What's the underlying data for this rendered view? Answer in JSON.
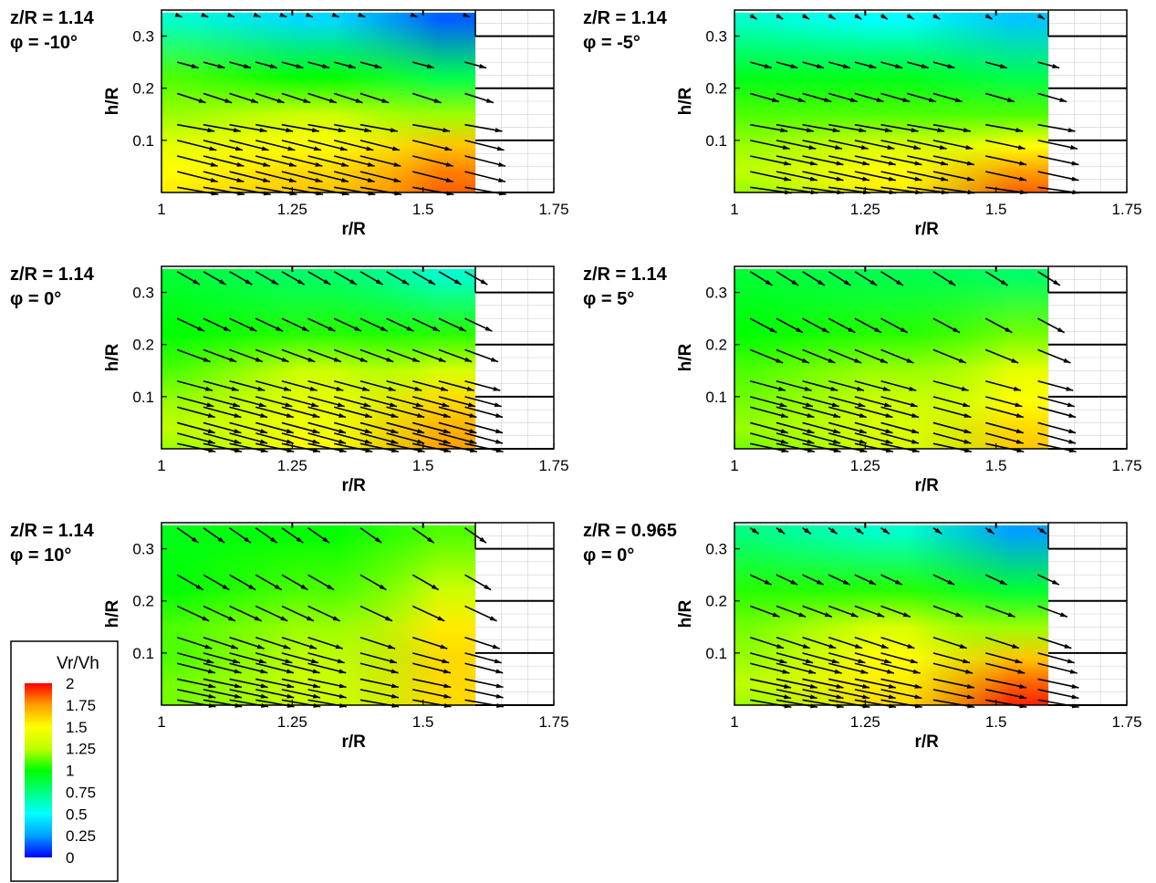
{
  "chart_data": [
    {
      "type": "heatmap",
      "title": [
        "z/R = 1.14",
        "φ = -10°"
      ],
      "xlabel": "r/R",
      "ylabel": "h/R",
      "xlim": [
        1,
        1.75
      ],
      "ylim": [
        0,
        0.35
      ],
      "xticks": [
        "1",
        "1.25",
        "1.5",
        "1.75"
      ],
      "yticks": [
        "0.1",
        "0.2",
        "0.3"
      ],
      "field_xlim": [
        1,
        1.6
      ],
      "grid": true,
      "columns": [
        {
          "r": 1.05,
          "v": [
            1.55,
            1.5,
            1.4,
            1.2,
            1.1,
            0.6
          ]
        },
        {
          "r": 1.3,
          "v": [
            1.65,
            1.6,
            1.5,
            1.3,
            1.0,
            0.4
          ]
        },
        {
          "r": 1.55,
          "v": [
            1.85,
            1.8,
            1.65,
            1.2,
            0.85,
            0.15
          ]
        }
      ],
      "vectors": {
        "x": [
          1.05,
          1.1,
          1.15,
          1.2,
          1.25,
          1.3,
          1.35,
          1.4,
          1.5,
          1.6
        ],
        "h": [
          0.01,
          0.04,
          0.07,
          0.1,
          0.13,
          0.19,
          0.25,
          0.34
        ],
        "u": [
          1.6,
          1.6,
          1.6,
          1.55,
          1.45,
          1.15,
          0.85,
          0.2
        ],
        "angle_deg": [
          -10,
          -14,
          -14,
          -14,
          -10,
          -18,
          -15,
          -20
        ]
      }
    },
    {
      "type": "heatmap",
      "title": [
        "z/R = 1.14",
        "φ = -5°"
      ],
      "xlabel": "r/R",
      "ylabel": "h/R",
      "xlim": [
        1,
        1.75
      ],
      "ylim": [
        0,
        0.35
      ],
      "xticks": [
        "1",
        "1.25",
        "1.5",
        "1.75"
      ],
      "yticks": [
        "0.1",
        "0.2",
        "0.3"
      ],
      "field_xlim": [
        1,
        1.6
      ],
      "grid": true,
      "columns": [
        {
          "r": 1.05,
          "v": [
            1.2,
            1.25,
            1.2,
            1.1,
            0.95,
            0.6
          ]
        },
        {
          "r": 1.3,
          "v": [
            1.55,
            1.5,
            1.35,
            1.1,
            0.95,
            0.5
          ]
        },
        {
          "r": 1.55,
          "v": [
            1.85,
            1.75,
            1.5,
            1.1,
            0.85,
            0.35
          ]
        }
      ],
      "vectors": {
        "x": [
          1.05,
          1.1,
          1.15,
          1.2,
          1.25,
          1.3,
          1.35,
          1.4,
          1.5,
          1.6
        ],
        "h": [
          0.01,
          0.04,
          0.07,
          0.1,
          0.13,
          0.19,
          0.25,
          0.34
        ],
        "u": [
          1.6,
          1.6,
          1.6,
          1.55,
          1.45,
          1.15,
          0.85,
          0.3
        ],
        "angle_deg": [
          -8,
          -12,
          -12,
          -12,
          -10,
          -16,
          -15,
          -30
        ]
      }
    },
    {
      "type": "heatmap",
      "title": [
        "z/R = 1.14",
        "φ = 0°"
      ],
      "xlabel": "r/R",
      "ylabel": "h/R",
      "xlim": [
        1,
        1.75
      ],
      "ylim": [
        0,
        0.35
      ],
      "xticks": [
        "1",
        "1.25",
        "1.5",
        "1.75"
      ],
      "yticks": [
        "0.1",
        "0.2",
        "0.3"
      ],
      "field_xlim": [
        1,
        1.6
      ],
      "grid": true,
      "columns": [
        {
          "r": 1.05,
          "v": [
            1.2,
            1.25,
            1.2,
            1.1,
            1.0,
            0.9
          ]
        },
        {
          "r": 1.3,
          "v": [
            1.5,
            1.45,
            1.4,
            1.3,
            1.05,
            0.8
          ]
        },
        {
          "r": 1.55,
          "v": [
            1.75,
            1.7,
            1.6,
            1.35,
            1.05,
            0.6
          ]
        }
      ],
      "vectors": {
        "x": [
          1.05,
          1.1,
          1.15,
          1.2,
          1.25,
          1.3,
          1.35,
          1.4,
          1.45,
          1.5,
          1.55,
          1.6
        ],
        "h": [
          0.01,
          0.03,
          0.05,
          0.08,
          0.1,
          0.13,
          0.19,
          0.25,
          0.34
        ],
        "u": [
          1.5,
          1.5,
          1.5,
          1.5,
          1.45,
          1.4,
          1.35,
          1.15,
          1.0
        ],
        "angle_deg": [
          -12,
          -15,
          -15,
          -15,
          -15,
          -15,
          -20,
          -25,
          -30
        ]
      }
    },
    {
      "type": "heatmap",
      "title": [
        "z/R = 1.14",
        "φ = 5°"
      ],
      "xlabel": "r/R",
      "ylabel": "h/R",
      "xlim": [
        1,
        1.75
      ],
      "ylim": [
        0,
        0.35
      ],
      "xticks": [
        "1",
        "1.25",
        "1.5",
        "1.75"
      ],
      "yticks": [
        "0.1",
        "0.2",
        "0.3"
      ],
      "field_xlim": [
        1,
        1.6
      ],
      "grid": true,
      "columns": [
        {
          "r": 1.05,
          "v": [
            1.15,
            1.2,
            1.15,
            1.1,
            1.0,
            0.9
          ]
        },
        {
          "r": 1.3,
          "v": [
            1.35,
            1.35,
            1.3,
            1.2,
            1.05,
            0.85
          ]
        },
        {
          "r": 1.55,
          "v": [
            1.65,
            1.6,
            1.5,
            1.4,
            1.15,
            0.8
          ]
        }
      ],
      "vectors": {
        "x": [
          1.05,
          1.1,
          1.15,
          1.2,
          1.25,
          1.3,
          1.4,
          1.5,
          1.6
        ],
        "h": [
          0.01,
          0.03,
          0.05,
          0.08,
          0.1,
          0.13,
          0.19,
          0.25,
          0.34
        ],
        "u": [
          1.5,
          1.5,
          1.5,
          1.5,
          1.45,
          1.4,
          1.35,
          1.15,
          1.0
        ],
        "angle_deg": [
          -12,
          -15,
          -15,
          -15,
          -15,
          -15,
          -22,
          -28,
          -32
        ]
      }
    },
    {
      "type": "heatmap",
      "title": [
        "z/R = 1.14",
        "φ = 10°"
      ],
      "xlabel": "r/R",
      "ylabel": "h/R",
      "xlim": [
        1,
        1.75
      ],
      "ylim": [
        0,
        0.35
      ],
      "xticks": [
        "1",
        "1.25",
        "1.5",
        "1.75"
      ],
      "yticks": [
        "0.1",
        "0.2",
        "0.3"
      ],
      "field_xlim": [
        1,
        1.6
      ],
      "grid": true,
      "columns": [
        {
          "r": 1.05,
          "v": [
            1.15,
            1.15,
            1.1,
            1.1,
            1.0,
            0.95
          ]
        },
        {
          "r": 1.3,
          "v": [
            1.3,
            1.3,
            1.25,
            1.2,
            1.1,
            1.0
          ]
        },
        {
          "r": 1.55,
          "v": [
            1.6,
            1.6,
            1.6,
            1.55,
            1.3,
            1.1
          ]
        }
      ],
      "vectors": {
        "x": [
          1.05,
          1.1,
          1.15,
          1.2,
          1.25,
          1.3,
          1.4,
          1.5,
          1.6
        ],
        "h": [
          0.01,
          0.03,
          0.05,
          0.08,
          0.1,
          0.13,
          0.19,
          0.25,
          0.34
        ],
        "u": [
          1.5,
          1.5,
          1.5,
          1.5,
          1.45,
          1.4,
          1.35,
          1.15,
          1.0
        ],
        "angle_deg": [
          -10,
          -12,
          -12,
          -14,
          -15,
          -18,
          -25,
          -30,
          -35
        ]
      }
    },
    {
      "type": "heatmap",
      "title": [
        "z/R = 0.965",
        "φ = 0°"
      ],
      "xlabel": "r/R",
      "ylabel": "h/R",
      "xlim": [
        1,
        1.75
      ],
      "ylim": [
        0,
        0.35
      ],
      "xticks": [
        "1",
        "1.25",
        "1.5",
        "1.75"
      ],
      "yticks": [
        "0.1",
        "0.2",
        "0.3"
      ],
      "field_xlim": [
        1,
        1.6
      ],
      "grid": true,
      "columns": [
        {
          "r": 1.05,
          "v": [
            1.2,
            1.25,
            1.2,
            1.15,
            1.05,
            0.75
          ]
        },
        {
          "r": 1.3,
          "v": [
            1.6,
            1.55,
            1.5,
            1.35,
            1.05,
            0.6
          ]
        },
        {
          "r": 1.55,
          "v": [
            1.95,
            1.85,
            1.65,
            1.2,
            0.9,
            0.25
          ]
        }
      ],
      "vectors": {
        "x": [
          1.05,
          1.1,
          1.15,
          1.2,
          1.25,
          1.3,
          1.4,
          1.5,
          1.6
        ],
        "h": [
          0.01,
          0.03,
          0.05,
          0.08,
          0.1,
          0.13,
          0.19,
          0.25,
          0.34
        ],
        "u": [
          1.6,
          1.6,
          1.6,
          1.55,
          1.45,
          1.35,
          1.2,
          0.9,
          0.4
        ],
        "angle_deg": [
          -10,
          -12,
          -12,
          -14,
          -15,
          -18,
          -20,
          -25,
          -35
        ]
      }
    }
  ],
  "legend": {
    "title": "Vr/Vh",
    "labels": [
      "2",
      "1.75",
      "1.5",
      "1.25",
      "1",
      "0.75",
      "0.5",
      "0.25",
      "0"
    ],
    "colormap": [
      "#0000ff",
      "#00a0ff",
      "#00ffff",
      "#00ff80",
      "#00ff00",
      "#c0ff00",
      "#ffff00",
      "#ffa000",
      "#ff0000"
    ]
  },
  "field_levels": [
    0,
    0.04,
    0.09,
    0.15,
    0.22,
    0.33
  ],
  "colors": {
    "axis": "#000000",
    "grid": "#d0d0d0",
    "arrow": "#000000"
  }
}
